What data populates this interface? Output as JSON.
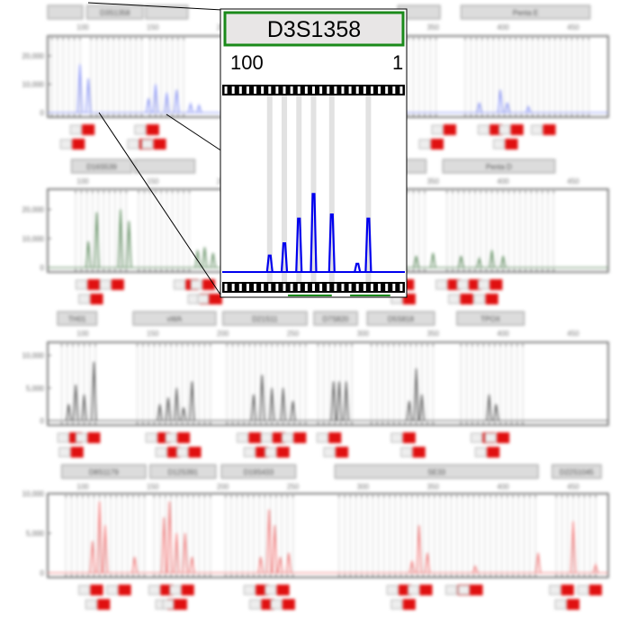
{
  "app": {
    "title": ""
  },
  "colors": {
    "panel1": "#8a95f5",
    "panel2": "#5c8a5c",
    "panel3": "#555555",
    "panel4": "#f07a7a",
    "inset_trace": "#0000ee",
    "inset_border": "#1a8a1a",
    "allele_call": "#e01010",
    "marker_bg": "#dcdcdc",
    "bin_line": "#d0d0d0",
    "label_box": "#e6e6e6"
  },
  "inset": {
    "marker_name": "D3S1358",
    "scale_left": "100",
    "scale_right": "1"
  },
  "chart_data": [
    {
      "type": "line",
      "name": "panel-1",
      "color": "#8a95f5",
      "ylim": [
        0,
        27000
      ],
      "yticks": [
        "20,000",
        "10,000",
        "0"
      ],
      "ytick_values": [
        20000,
        10000,
        0
      ],
      "xlim": [
        75,
        475
      ],
      "xticks": [
        "100",
        "150",
        "200",
        "250",
        "300",
        "350",
        "400",
        "450"
      ],
      "xtick_values": [
        100,
        150,
        200,
        250,
        300,
        350,
        400,
        450
      ],
      "markers": [
        {
          "label": "",
          "from": 75,
          "to": 100
        },
        {
          "label": "D3S1358",
          "from": 103,
          "to": 143
        },
        {
          "label": "",
          "from": 145,
          "to": 175
        },
        {
          "label": "",
          "from": 325,
          "to": 355
        },
        {
          "label": "Penta E",
          "from": 370,
          "to": 462
        }
      ],
      "peaks": [
        [
          98,
          17000
        ],
        [
          104,
          12000
        ],
        [
          147,
          5000
        ],
        [
          152,
          10000
        ],
        [
          160,
          7000
        ],
        [
          167,
          8000
        ],
        [
          177,
          3000
        ],
        [
          183,
          2500
        ],
        [
          383,
          3500
        ],
        [
          398,
          8000
        ],
        [
          403,
          3500
        ],
        [
          418,
          2000
        ]
      ],
      "calls": [
        {
          "x": 104,
          "row": 0,
          "label": ""
        },
        {
          "x": 150,
          "row": 0,
          "label": ""
        },
        {
          "x": 97,
          "row": 1,
          "label": ""
        },
        {
          "x": 145,
          "row": 1,
          "label": ""
        },
        {
          "x": 155,
          "row": 1,
          "label": ""
        },
        {
          "x": 362,
          "row": 0,
          "label": ""
        },
        {
          "x": 395,
          "row": 0,
          "label": ""
        },
        {
          "x": 410,
          "row": 0,
          "label": ""
        },
        {
          "x": 433,
          "row": 0,
          "label": ""
        },
        {
          "x": 353,
          "row": 1,
          "label": ""
        },
        {
          "x": 406,
          "row": 1,
          "label": ""
        }
      ]
    },
    {
      "type": "line",
      "name": "panel-2",
      "color": "#5c8a5c",
      "ylim": [
        0,
        27000
      ],
      "yticks": [
        "20,000",
        "10,000",
        "0"
      ],
      "ytick_values": [
        20000,
        10000,
        0
      ],
      "xlim": [
        75,
        475
      ],
      "xticks": [
        "100",
        "150",
        "200",
        "250",
        "300",
        "350",
        "400",
        "450"
      ],
      "xtick_values": [
        100,
        150,
        200,
        250,
        300,
        350,
        400,
        450
      ],
      "markers": [
        {
          "label": "D16S539",
          "from": 92,
          "to": 135
        },
        {
          "label": "",
          "from": 137,
          "to": 180
        },
        {
          "label": "",
          "from": 313,
          "to": 345
        },
        {
          "label": "Penta D",
          "from": 357,
          "to": 437
        }
      ],
      "peaks": [
        [
          104,
          9000
        ],
        [
          110,
          19000
        ],
        [
          127,
          20000
        ],
        [
          133,
          16000
        ],
        [
          182,
          6000
        ],
        [
          187,
          7000
        ],
        [
          193,
          5000
        ],
        [
          338,
          4000
        ],
        [
          350,
          5000
        ],
        [
          370,
          4000
        ],
        [
          383,
          3000
        ],
        [
          392,
          6000
        ],
        [
          400,
          4000
        ]
      ],
      "calls": [
        {
          "x": 108,
          "row": 0,
          "label": ""
        },
        {
          "x": 125,
          "row": 0,
          "label": ""
        },
        {
          "x": 110,
          "row": 1,
          "label": ""
        },
        {
          "x": 178,
          "row": 0,
          "label": ""
        },
        {
          "x": 190,
          "row": 0,
          "label": ""
        },
        {
          "x": 188,
          "row": 1,
          "label": ""
        },
        {
          "x": 195,
          "row": 1,
          "label": ""
        },
        {
          "x": 332,
          "row": 0,
          "label": ""
        },
        {
          "x": 365,
          "row": 0,
          "label": ""
        },
        {
          "x": 380,
          "row": 0,
          "label": ""
        },
        {
          "x": 395,
          "row": 0,
          "label": ""
        },
        {
          "x": 333,
          "row": 1,
          "label": ""
        },
        {
          "x": 374,
          "row": 1,
          "label": ""
        },
        {
          "x": 392,
          "row": 1,
          "label": ""
        }
      ]
    },
    {
      "type": "line",
      "name": "panel-3",
      "color": "#555555",
      "ylim": [
        0,
        12000
      ],
      "yticks": [
        "10,000",
        "5,000",
        "0"
      ],
      "ytick_values": [
        10000,
        5000,
        0
      ],
      "xlim": [
        75,
        475
      ],
      "xticks": [
        "100",
        "150",
        "200",
        "250",
        "300",
        "350",
        "400",
        "450"
      ],
      "xtick_values": [
        100,
        150,
        200,
        250,
        300,
        350,
        400,
        450
      ],
      "markers": [
        {
          "label": "TH01",
          "from": 82,
          "to": 110
        },
        {
          "label": "vWA",
          "from": 136,
          "to": 195
        },
        {
          "label": "D21S11",
          "from": 200,
          "to": 260
        },
        {
          "label": "D7S820",
          "from": 265,
          "to": 296
        },
        {
          "label": "D5S818",
          "from": 303,
          "to": 351
        },
        {
          "label": "TPOX",
          "from": 367,
          "to": 415
        }
      ],
      "peaks": [
        [
          90,
          2500
        ],
        [
          95,
          5500
        ],
        [
          101,
          4000
        ],
        [
          108,
          9000
        ],
        [
          155,
          2500
        ],
        [
          161,
          3500
        ],
        [
          167,
          5000
        ],
        [
          172,
          2000
        ],
        [
          178,
          6000
        ],
        [
          222,
          4000
        ],
        [
          228,
          7000
        ],
        [
          235,
          5000
        ],
        [
          243,
          5000
        ],
        [
          250,
          3000
        ],
        [
          279,
          6000
        ],
        [
          283,
          6000
        ],
        [
          288,
          6000
        ],
        [
          333,
          3000
        ],
        [
          338,
          8000
        ],
        [
          342,
          4000
        ],
        [
          390,
          4000
        ],
        [
          395,
          2500
        ]
      ],
      "calls": [
        {
          "x": 95,
          "row": 0,
          "label": ""
        },
        {
          "x": 108,
          "row": 0,
          "label": ""
        },
        {
          "x": 96,
          "row": 1,
          "label": ""
        },
        {
          "x": 158,
          "row": 0,
          "label": ""
        },
        {
          "x": 172,
          "row": 0,
          "label": ""
        },
        {
          "x": 165,
          "row": 1,
          "label": ""
        },
        {
          "x": 180,
          "row": 1,
          "label": ""
        },
        {
          "x": 223,
          "row": 0,
          "label": ""
        },
        {
          "x": 240,
          "row": 0,
          "label": ""
        },
        {
          "x": 255,
          "row": 0,
          "label": ""
        },
        {
          "x": 228,
          "row": 1,
          "label": ""
        },
        {
          "x": 243,
          "row": 1,
          "label": ""
        },
        {
          "x": 280,
          "row": 0,
          "label": ""
        },
        {
          "x": 285,
          "row": 1,
          "label": ""
        },
        {
          "x": 333,
          "row": 0,
          "label": ""
        },
        {
          "x": 340,
          "row": 1,
          "label": ""
        },
        {
          "x": 390,
          "row": 0,
          "label": ""
        },
        {
          "x": 400,
          "row": 0,
          "label": ""
        },
        {
          "x": 393,
          "row": 1,
          "label": ""
        }
      ]
    },
    {
      "type": "line",
      "name": "panel-4",
      "color": "#f07a7a",
      "ylim": [
        0,
        10000
      ],
      "yticks": [
        "10,000",
        "5,000",
        "0"
      ],
      "ytick_values": [
        10000,
        5000,
        0
      ],
      "xlim": [
        75,
        475
      ],
      "xticks": [
        "100",
        "150",
        "200",
        "250",
        "300",
        "350",
        "400",
        "450"
      ],
      "xtick_values": [
        100,
        150,
        200,
        250,
        300,
        350,
        400,
        450
      ],
      "markers": [
        {
          "label": "D8S1179",
          "from": 85,
          "to": 145
        },
        {
          "label": "D12S391",
          "from": 148,
          "to": 195
        },
        {
          "label": "D19S433",
          "from": 199,
          "to": 252
        },
        {
          "label": "SE33",
          "from": 280,
          "to": 425
        },
        {
          "label": "D22S1045",
          "from": 435,
          "to": 470
        }
      ],
      "peaks": [
        [
          107,
          4000
        ],
        [
          112,
          9000
        ],
        [
          116,
          6000
        ],
        [
          137,
          2000
        ],
        [
          158,
          7000
        ],
        [
          162,
          9000
        ],
        [
          167,
          5000
        ],
        [
          173,
          5000
        ],
        [
          178,
          2000
        ],
        [
          227,
          2000
        ],
        [
          233,
          8000
        ],
        [
          237,
          6000
        ],
        [
          241,
          2000
        ],
        [
          247,
          2500
        ],
        [
          335,
          1500
        ],
        [
          340,
          6000
        ],
        [
          346,
          2500
        ],
        [
          380,
          800
        ],
        [
          425,
          2500
        ],
        [
          450,
          6500
        ],
        [
          466,
          1000
        ]
      ],
      "calls": [
        {
          "x": 110,
          "row": 0,
          "label": ""
        },
        {
          "x": 130,
          "row": 0,
          "label": ""
        },
        {
          "x": 115,
          "row": 1,
          "label": ""
        },
        {
          "x": 160,
          "row": 0,
          "label": ""
        },
        {
          "x": 175,
          "row": 0,
          "label": ""
        },
        {
          "x": 165,
          "row": 1,
          "label": ""
        },
        {
          "x": 170,
          "row": 1,
          "label": ""
        },
        {
          "x": 228,
          "row": 0,
          "label": ""
        },
        {
          "x": 243,
          "row": 0,
          "label": ""
        },
        {
          "x": 232,
          "row": 1,
          "label": ""
        },
        {
          "x": 247,
          "row": 1,
          "label": ""
        },
        {
          "x": 330,
          "row": 0,
          "label": ""
        },
        {
          "x": 345,
          "row": 0,
          "label": ""
        },
        {
          "x": 372,
          "row": 0,
          "label": ""
        },
        {
          "x": 381,
          "row": 0,
          "label": ""
        },
        {
          "x": 333,
          "row": 1,
          "label": ""
        },
        {
          "x": 446,
          "row": 0,
          "label": ""
        },
        {
          "x": 466,
          "row": 0,
          "label": ""
        },
        {
          "x": 450,
          "row": 1,
          "label": ""
        }
      ]
    },
    {
      "type": "line",
      "name": "inset-D3S1358",
      "color": "#0000ee",
      "ylim": [
        0,
        20000
      ],
      "xlim": [
        100,
        150
      ],
      "peaks": [
        [
          113,
          2000
        ],
        [
          117,
          3500
        ],
        [
          121,
          6500
        ],
        [
          125,
          9500
        ],
        [
          130,
          7000
        ],
        [
          137,
          1000
        ],
        [
          140,
          6500
        ]
      ]
    }
  ]
}
